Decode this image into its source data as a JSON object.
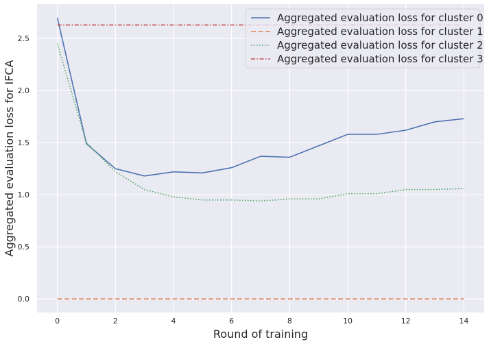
{
  "chart_data": {
    "type": "line",
    "title": "",
    "xlabel": "Round of training",
    "ylabel": "Aggregated evaluation loss for IFCA",
    "xlim": [
      -0.7,
      14.7
    ],
    "ylim": [
      -0.13,
      2.83
    ],
    "x_ticks": [
      0,
      2,
      4,
      6,
      8,
      10,
      12,
      14
    ],
    "y_ticks": [
      0.0,
      0.5,
      1.0,
      1.5,
      2.0,
      2.5
    ],
    "y_tick_labels": [
      "0.0",
      "0.5",
      "1.0",
      "1.5",
      "2.0",
      "2.5"
    ],
    "grid": true,
    "legend_position": "top-right",
    "x": [
      0,
      1,
      2,
      3,
      4,
      5,
      6,
      7,
      8,
      9,
      10,
      11,
      12,
      13,
      14
    ],
    "series": [
      {
        "name": "Aggregated evaluation loss for cluster 0",
        "color": "#4c72b0",
        "style": "solid",
        "values": [
          2.7,
          1.49,
          1.25,
          1.18,
          1.22,
          1.21,
          1.26,
          1.37,
          1.36,
          1.47,
          1.58,
          1.58,
          1.62,
          1.7,
          1.73
        ]
      },
      {
        "name": "Aggregated evaluation loss for cluster 1",
        "color": "#dd8452",
        "style": "dashed",
        "values": [
          0.0,
          0.0,
          0.0,
          0.0,
          0.0,
          0.0,
          0.0,
          0.0,
          0.0,
          0.0,
          0.0,
          0.0,
          0.0,
          0.0,
          0.0
        ]
      },
      {
        "name": "Aggregated evaluation loss for cluster 2",
        "color": "#55a868",
        "style": "dotted",
        "values": [
          2.45,
          1.5,
          1.22,
          1.05,
          0.98,
          0.95,
          0.95,
          0.94,
          0.96,
          0.96,
          1.01,
          1.01,
          1.05,
          1.05,
          1.06
        ]
      },
      {
        "name": "Aggregated evaluation loss for cluster 3",
        "color": "#c44e52",
        "style": "dashdot",
        "values": [
          2.63,
          2.63,
          2.63,
          2.63,
          2.63,
          2.63,
          2.63,
          2.63,
          2.63,
          2.63,
          2.63,
          2.63,
          2.63,
          2.63,
          2.63
        ]
      }
    ],
    "background_color": "#eaeaf2",
    "grid_color": "#ffffff"
  }
}
